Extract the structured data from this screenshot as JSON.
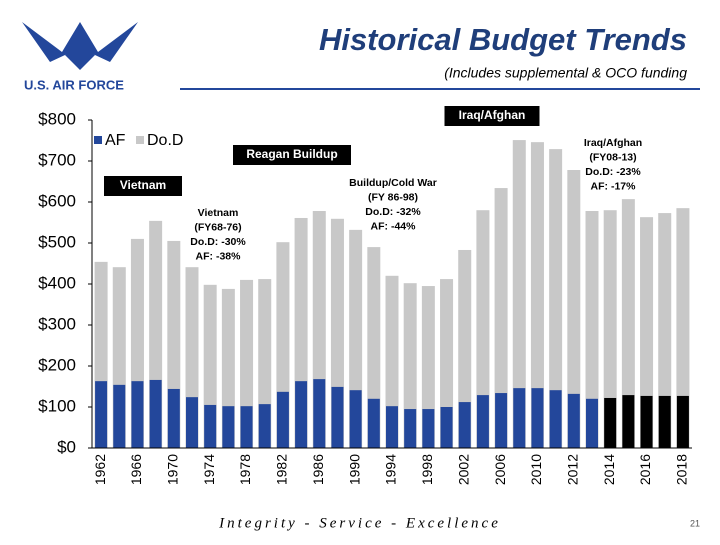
{
  "slide": {
    "logo_text": "U.S. AIR FORCE",
    "footer": "Integrity - Service - Excellence",
    "page_number": "21"
  },
  "chart_data": {
    "type": "overlay_bar",
    "title": "Historical Budget Trends",
    "subtitle": "(Includes supplemental & OCO funding",
    "categories": [
      "1962",
      null,
      "1966",
      null,
      "1970",
      null,
      "1974",
      null,
      "1978",
      null,
      "1982",
      null,
      "1986",
      null,
      "1990",
      null,
      "1994",
      null,
      "1998",
      null,
      "2002",
      null,
      "2006",
      null,
      "2010",
      null,
      "2012",
      null,
      "2014",
      null,
      "2016",
      null,
      "2018"
    ],
    "series": [
      {
        "name": "Do.D",
        "color": "#c8c8c8",
        "values": [
          454,
          441,
          510,
          554,
          505,
          441,
          398,
          388,
          410,
          412,
          502,
          561,
          578,
          559,
          532,
          490,
          420,
          402,
          395,
          412,
          483,
          580,
          634,
          751,
          746,
          729,
          678,
          578,
          580,
          607,
          563,
          573,
          585
        ]
      },
      {
        "name": "AF",
        "color": "#23479b",
        "colors": [
          "#23479b",
          "#23479b",
          "#23479b",
          "#23479b",
          "#23479b",
          "#23479b",
          "#23479b",
          "#23479b",
          "#23479b",
          "#23479b",
          "#23479b",
          "#23479b",
          "#23479b",
          "#23479b",
          "#23479b",
          "#23479b",
          "#23479b",
          "#23479b",
          "#23479b",
          "#23479b",
          "#23479b",
          "#23479b",
          "#23479b",
          "#23479b",
          "#23479b",
          "#23479b",
          "#23479b",
          "#23479b",
          "#000000",
          "#000000",
          "#000000",
          "#000000",
          "#000000"
        ],
        "values": [
          163,
          154,
          163,
          166,
          144,
          124,
          105,
          102,
          102,
          107,
          137,
          163,
          168,
          149,
          141,
          120,
          102,
          95,
          95,
          100,
          112,
          129,
          134,
          146,
          146,
          141,
          132,
          120,
          122,
          129,
          127,
          127,
          127
        ]
      }
    ],
    "ylim": [
      0,
      800
    ],
    "yticks": [
      {
        "value": 0,
        "label": "$0"
      },
      {
        "value": 100,
        "label": "$100"
      },
      {
        "value": 200,
        "label": "$200"
      },
      {
        "value": 300,
        "label": "$300"
      },
      {
        "value": 400,
        "label": "$400"
      },
      {
        "value": 500,
        "label": "$500"
      },
      {
        "value": 600,
        "label": "$600"
      },
      {
        "value": 700,
        "label": "$700"
      },
      {
        "value": 800,
        "label": "$800"
      }
    ],
    "annotations": [
      {
        "boxed": true,
        "lines": [
          "Iraq/Afghan"
        ]
      },
      {
        "boxed": true,
        "lines": [
          "Reagan Buildup"
        ]
      },
      {
        "boxed": true,
        "lines": [
          "Vietnam"
        ]
      },
      {
        "boxed": false,
        "lines": [
          "Vietnam",
          "(FY68-76)",
          "Do.D:  -30%",
          "AF:  -38%"
        ]
      },
      {
        "boxed": false,
        "lines": [
          "Buildup/Cold War",
          "(FY 86-98)",
          "Do.D:  -32%",
          "AF:  -44%"
        ]
      },
      {
        "boxed": false,
        "lines": [
          "Iraq/Afghan",
          "(FY08-13)",
          "Do.D:  -23%",
          "AF:  -17%"
        ]
      }
    ]
  }
}
